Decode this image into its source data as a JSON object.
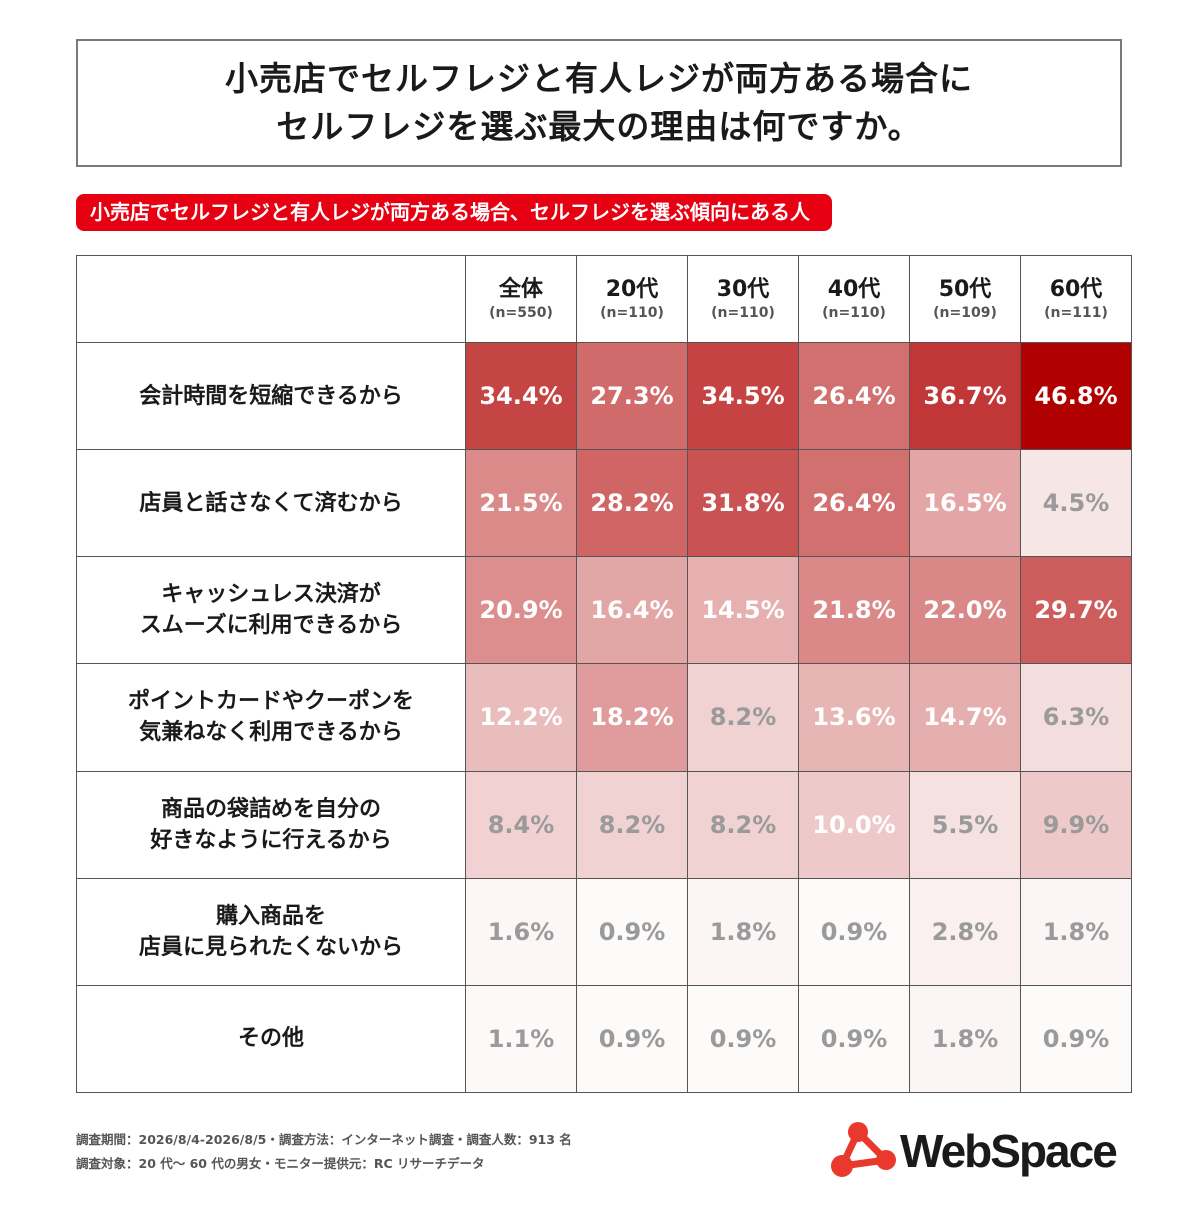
{
  "title": {
    "line1": "小売店でセルフレジと有人レジが両方ある場合に",
    "line2": "セルフレジを選ぶ最大の理由は何ですか。"
  },
  "subtitle": "小売店でセルフレジと有人レジが両方ある場合、セルフレジを選ぶ傾向にある人",
  "chart_data": {
    "type": "heatmap",
    "columns": [
      {
        "name": "全体",
        "n": "(n=550)"
      },
      {
        "name": "20代",
        "n": "(n=110)"
      },
      {
        "name": "30代",
        "n": "(n=110)"
      },
      {
        "name": "40代",
        "n": "(n=110)"
      },
      {
        "name": "50代",
        "n": "(n=109)"
      },
      {
        "name": "60代",
        "n": "(n=111)"
      }
    ],
    "rows": [
      {
        "label": [
          "会計時間を短縮できるから"
        ],
        "values": [
          34.4,
          27.3,
          34.5,
          26.4,
          36.7,
          46.8
        ]
      },
      {
        "label": [
          "店員と話さなくて済むから"
        ],
        "values": [
          21.5,
          28.2,
          31.8,
          26.4,
          16.5,
          4.5
        ]
      },
      {
        "label": [
          "キャッシュレス決済が",
          "スムーズに利用できるから"
        ],
        "values": [
          20.9,
          16.4,
          14.5,
          21.8,
          22.0,
          29.7
        ]
      },
      {
        "label": [
          "ポイントカードやクーポンを",
          "気兼ねなく利用できるから"
        ],
        "values": [
          12.2,
          18.2,
          8.2,
          13.6,
          14.7,
          6.3
        ]
      },
      {
        "label": [
          "商品の袋詰めを自分の",
          "好きなように行えるから"
        ],
        "values": [
          8.4,
          8.2,
          8.2,
          10.0,
          5.5,
          9.9
        ]
      },
      {
        "label": [
          "購入商品を",
          "店員に見られたくないから"
        ],
        "values": [
          1.6,
          0.9,
          1.8,
          0.9,
          2.8,
          1.8
        ]
      },
      {
        "label": [
          "その他"
        ],
        "values": [
          1.1,
          0.9,
          0.9,
          0.9,
          1.8,
          0.9
        ]
      }
    ],
    "unit": "%",
    "color_scale": {
      "low": "#ffffff",
      "high": "#b00000"
    }
  },
  "footer": {
    "line1": "調査期間：2026/8/4-2026/8/5・調査方法：インターネット調査・調査人数：913 名",
    "line2": "調査対象：20 代〜 60 代の男女・モニター提供元：RC リサーチデータ"
  },
  "logo": {
    "text": "WebSpace",
    "accent": "#e8392c"
  }
}
